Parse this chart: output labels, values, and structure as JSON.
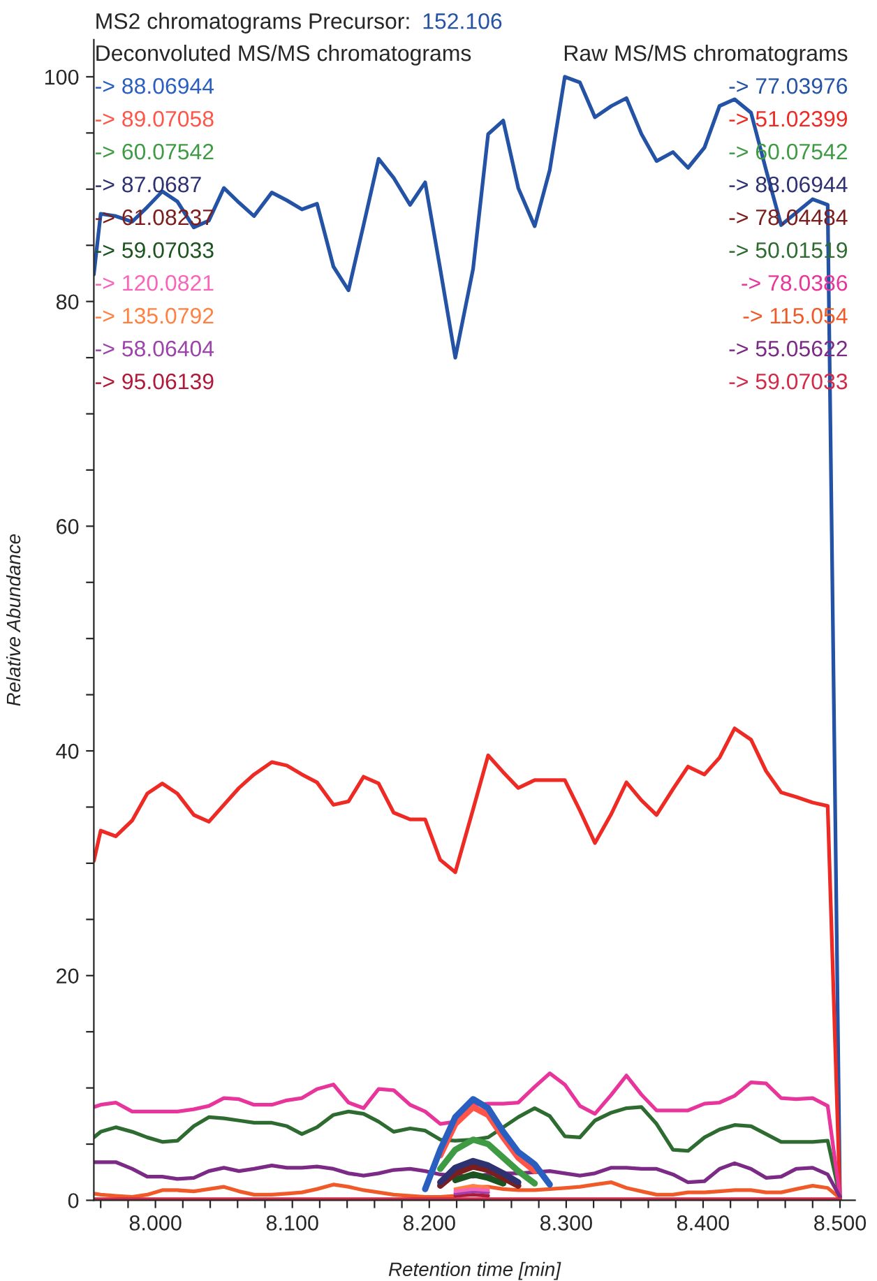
{
  "chart_data": {
    "type": "line",
    "title": "MS2 chromatograms Precursor:",
    "subtitle": "152.106",
    "xlabel": "Retention time [min]",
    "ylabel": "Relative Abundance",
    "annotations": [
      "Deconvoluted MS/MS chromatograms",
      "Raw MS/MS chromatograms"
    ],
    "legend": "top",
    "grid": false,
    "marker": "none",
    "line_style": "solid",
    "xlim": [
      7.955,
      8.511
    ],
    "ylim": [
      0,
      103.3
    ],
    "xticks": [
      {
        "value": 7.96,
        "label": null
      },
      {
        "value": 7.98,
        "label": null
      },
      {
        "value": 8.0,
        "label": "8.000"
      },
      {
        "value": 8.02,
        "label": null
      },
      {
        "value": 8.04,
        "label": null
      },
      {
        "value": 8.06,
        "label": null
      },
      {
        "value": 8.08,
        "label": null
      },
      {
        "value": 8.1,
        "label": "8.100"
      },
      {
        "value": 8.12,
        "label": null
      },
      {
        "value": 8.14,
        "label": null
      },
      {
        "value": 8.16,
        "label": null
      },
      {
        "value": 8.18,
        "label": null
      },
      {
        "value": 8.2,
        "label": "8.200"
      },
      {
        "value": 8.22,
        "label": null
      },
      {
        "value": 8.24,
        "label": null
      },
      {
        "value": 8.26,
        "label": null
      },
      {
        "value": 8.28,
        "label": null
      },
      {
        "value": 8.3,
        "label": "8.300"
      },
      {
        "value": 8.32,
        "label": null
      },
      {
        "value": 8.34,
        "label": null
      },
      {
        "value": 8.36,
        "label": null
      },
      {
        "value": 8.38,
        "label": null
      },
      {
        "value": 8.4,
        "label": "8.400"
      },
      {
        "value": 8.42,
        "label": null
      },
      {
        "value": 8.44,
        "label": null
      },
      {
        "value": 8.46,
        "label": null
      },
      {
        "value": 8.48,
        "label": null
      },
      {
        "value": 8.5,
        "label": "8.500"
      }
    ],
    "yticks": [
      0,
      {
        "value": 5,
        "label": null
      },
      {
        "value": 10,
        "label": null
      },
      {
        "value": 15,
        "label": null
      },
      20,
      {
        "value": 25,
        "label": null
      },
      {
        "value": 30,
        "label": null
      },
      {
        "value": 35,
        "label": null
      },
      40,
      {
        "value": 45,
        "label": null
      },
      {
        "value": 50,
        "label": null
      },
      {
        "value": 55,
        "label": null
      },
      60,
      {
        "value": 65,
        "label": null
      },
      {
        "value": 70,
        "label": null
      },
      {
        "value": 75,
        "label": null
      },
      80,
      {
        "value": 85,
        "label": null
      },
      {
        "value": 90,
        "label": null
      },
      {
        "value": 95,
        "label": null
      },
      100
    ],
    "x": [
      7.955,
      7.96,
      7.971,
      7.983,
      7.994,
      8.005,
      8.016,
      8.028,
      8.039,
      8.05,
      8.061,
      8.072,
      8.085,
      8.096,
      8.107,
      8.118,
      8.13,
      8.141,
      8.152,
      8.163,
      8.174,
      8.186,
      8.197,
      8.208,
      8.219,
      8.232,
      8.243,
      8.254,
      8.265,
      8.277,
      8.288,
      8.299,
      8.31,
      8.321,
      8.333,
      8.344,
      8.355,
      8.366,
      8.378,
      8.389,
      8.401,
      8.412,
      8.423,
      8.435,
      8.446,
      8.457,
      8.468,
      8.48,
      8.491,
      8.5
    ],
    "series": [
      {
        "name": "-> 88.06944",
        "color": "#2a5fc0",
        "values": [
          null,
          null,
          null,
          null,
          null,
          null,
          null,
          null,
          null,
          null,
          null,
          null,
          null,
          null,
          null,
          null,
          null,
          null,
          null,
          null,
          null,
          null,
          1.0,
          4.5,
          7.4,
          9.0,
          8.2,
          6.1,
          4.3,
          3.2,
          1.4,
          null,
          null,
          null,
          null,
          null,
          null,
          null,
          null,
          null,
          null,
          null,
          null,
          null,
          null,
          null,
          null,
          null,
          null,
          null
        ]
      },
      {
        "name": "-> 89.07058",
        "color": "#ff5548",
        "values": [
          null,
          null,
          null,
          null,
          null,
          null,
          null,
          null,
          null,
          null,
          null,
          null,
          null,
          null,
          null,
          null,
          null,
          null,
          null,
          null,
          null,
          null,
          null,
          4.0,
          6.8,
          8.3,
          7.6,
          5.6,
          3.8,
          2.6,
          null,
          null,
          null,
          null,
          null,
          null,
          null,
          null,
          null,
          null,
          null,
          null,
          null,
          null,
          null,
          null,
          null,
          null,
          null,
          null
        ]
      },
      {
        "name": "-> 60.07542",
        "color": "#3f9a44",
        "values": [
          null,
          null,
          null,
          null,
          null,
          null,
          null,
          null,
          null,
          null,
          null,
          null,
          null,
          null,
          null,
          null,
          null,
          null,
          null,
          null,
          null,
          null,
          null,
          2.8,
          4.5,
          5.4,
          5.0,
          3.8,
          2.6,
          1.5,
          null,
          null,
          null,
          null,
          null,
          null,
          null,
          null,
          null,
          null,
          null,
          null,
          null,
          null,
          null,
          null,
          null,
          null,
          null,
          null
        ]
      },
      {
        "name": "-> 87.0687",
        "color": "#2f3270",
        "values": [
          null,
          null,
          null,
          null,
          null,
          null,
          null,
          null,
          null,
          null,
          null,
          null,
          null,
          null,
          null,
          null,
          null,
          null,
          null,
          null,
          null,
          null,
          null,
          1.6,
          2.9,
          3.5,
          3.1,
          2.4,
          1.6,
          null,
          null,
          null,
          null,
          null,
          null,
          null,
          null,
          null,
          null,
          null,
          null,
          null,
          null,
          null,
          null,
          null,
          null,
          null,
          null,
          null
        ]
      },
      {
        "name": "-> 61.08237",
        "color": "#7b1e1e",
        "values": [
          null,
          null,
          null,
          null,
          null,
          null,
          null,
          null,
          null,
          null,
          null,
          null,
          null,
          null,
          null,
          null,
          null,
          null,
          null,
          null,
          null,
          null,
          null,
          1.3,
          2.4,
          3.0,
          2.7,
          2.0,
          1.3,
          null,
          null,
          null,
          null,
          null,
          null,
          null,
          null,
          null,
          null,
          null,
          null,
          null,
          null,
          null,
          null,
          null,
          null,
          null,
          null,
          null
        ]
      },
      {
        "name": "-> 59.07033",
        "color": "#1c5420",
        "values": [
          null,
          null,
          null,
          null,
          null,
          null,
          null,
          null,
          null,
          null,
          null,
          null,
          null,
          null,
          null,
          null,
          null,
          null,
          null,
          null,
          null,
          null,
          null,
          null,
          1.8,
          2.3,
          2.0,
          1.5,
          null,
          null,
          null,
          null,
          null,
          null,
          null,
          null,
          null,
          null,
          null,
          null,
          null,
          null,
          null,
          null,
          null,
          null,
          null,
          null,
          null,
          null
        ]
      },
      {
        "name": "-> 120.0821",
        "color": "#f765ba",
        "values": [
          null,
          null,
          null,
          null,
          null,
          null,
          null,
          null,
          null,
          null,
          null,
          null,
          null,
          null,
          null,
          null,
          null,
          null,
          null,
          null,
          null,
          null,
          null,
          null,
          0.8,
          1.0,
          0.9,
          null,
          null,
          null,
          null,
          null,
          null,
          null,
          null,
          null,
          null,
          null,
          null,
          null,
          null,
          null,
          null,
          null,
          null,
          null,
          null,
          null,
          null,
          null
        ]
      },
      {
        "name": "-> 135.0792",
        "color": "#ff8040",
        "values": [
          null,
          null,
          null,
          null,
          null,
          null,
          null,
          null,
          null,
          null,
          null,
          null,
          null,
          null,
          null,
          null,
          null,
          null,
          null,
          null,
          null,
          null,
          null,
          null,
          1.0,
          1.3,
          1.1,
          null,
          null,
          null,
          null,
          null,
          null,
          null,
          null,
          null,
          null,
          null,
          null,
          null,
          null,
          null,
          null,
          null,
          null,
          null,
          null,
          null,
          null,
          null
        ]
      },
      {
        "name": "-> 58.06404",
        "color": "#9c42ab",
        "values": [
          null,
          null,
          null,
          null,
          null,
          null,
          null,
          null,
          null,
          null,
          null,
          null,
          null,
          null,
          null,
          null,
          null,
          null,
          null,
          null,
          null,
          null,
          null,
          null,
          0.6,
          0.8,
          0.7,
          null,
          null,
          null,
          null,
          null,
          null,
          null,
          null,
          null,
          null,
          null,
          null,
          null,
          null,
          null,
          null,
          null,
          null,
          null,
          null,
          null,
          null,
          null
        ]
      },
      {
        "name": "-> 95.06139",
        "color": "#b01a3a",
        "values": [
          null,
          null,
          null,
          null,
          null,
          null,
          null,
          null,
          null,
          null,
          null,
          null,
          null,
          null,
          null,
          null,
          null,
          null,
          null,
          null,
          null,
          null,
          null,
          null,
          0.4,
          0.5,
          0.4,
          null,
          null,
          null,
          null,
          null,
          null,
          null,
          null,
          null,
          null,
          null,
          null,
          null,
          null,
          null,
          null,
          null,
          null,
          null,
          null,
          null,
          null,
          null
        ]
      },
      {
        "name": "-> 77.03976",
        "color": "#2453a6",
        "values": [
          82.4,
          87.8,
          87.6,
          87.1,
          88.4,
          89.8,
          88.9,
          86.6,
          87.2,
          90.1,
          88.8,
          87.6,
          89.7,
          89.0,
          88.2,
          88.7,
          83.1,
          81.0,
          86.8,
          92.7,
          91.0,
          88.6,
          90.6,
          82.9,
          75.0,
          82.9,
          94.9,
          96.1,
          90.1,
          86.7,
          91.7,
          100.0,
          99.5,
          96.4,
          97.4,
          98.1,
          94.9,
          92.5,
          93.3,
          91.9,
          93.7,
          97.4,
          98.0,
          96.8,
          91.7,
          86.8,
          87.9,
          89.1,
          88.6,
          0.0
        ]
      },
      {
        "name": "-> 51.02399",
        "color": "#ee2a24",
        "values": [
          30.2,
          32.9,
          32.4,
          33.8,
          36.2,
          37.1,
          36.2,
          34.3,
          33.7,
          35.2,
          36.7,
          37.9,
          39.0,
          38.7,
          37.9,
          37.2,
          35.2,
          35.5,
          37.7,
          37.1,
          34.5,
          33.9,
          33.9,
          30.3,
          29.2,
          34.8,
          39.6,
          38.1,
          36.7,
          37.4,
          37.4,
          37.4,
          34.7,
          31.8,
          34.4,
          37.2,
          35.6,
          34.3,
          36.6,
          38.6,
          37.9,
          39.4,
          42.0,
          41.0,
          38.2,
          36.3,
          35.9,
          35.4,
          35.1,
          0.0
        ]
      },
      {
        "name": "-> 60.07542",
        "color": "#3f9a44",
        "values": [
          null,
          null,
          null,
          null,
          null,
          null,
          null,
          null,
          null,
          null,
          null,
          null,
          null,
          null,
          null,
          null,
          null,
          null,
          null,
          null,
          null,
          null,
          null,
          null,
          null,
          null,
          null,
          null,
          null,
          null,
          null,
          null,
          null,
          null,
          null,
          null,
          null,
          null,
          null,
          null,
          null,
          null,
          null,
          null,
          null,
          null,
          null,
          null,
          null,
          null
        ]
      },
      {
        "name": "-> 88.06944",
        "color": "#2f3270",
        "values": [
          null,
          null,
          null,
          null,
          null,
          null,
          null,
          null,
          null,
          null,
          null,
          null,
          null,
          null,
          null,
          null,
          null,
          null,
          null,
          null,
          null,
          null,
          null,
          null,
          null,
          null,
          null,
          null,
          null,
          null,
          null,
          null,
          null,
          null,
          null,
          null,
          null,
          null,
          null,
          null,
          null,
          null,
          null,
          null,
          null,
          null,
          null,
          null,
          null,
          null
        ]
      },
      {
        "name": "-> 78.04484",
        "color": "#7b1e1e",
        "values": [
          null,
          null,
          null,
          null,
          null,
          null,
          null,
          null,
          null,
          null,
          null,
          null,
          null,
          null,
          null,
          null,
          null,
          null,
          null,
          null,
          null,
          null,
          null,
          null,
          null,
          null,
          null,
          null,
          null,
          null,
          null,
          null,
          null,
          null,
          null,
          null,
          null,
          null,
          null,
          null,
          null,
          null,
          null,
          null,
          null,
          null,
          null,
          null,
          null,
          null
        ]
      },
      {
        "name": "-> 50.01519",
        "color": "#2e6b30",
        "values": [
          5.6,
          6.1,
          6.5,
          6.1,
          5.6,
          5.2,
          5.3,
          6.6,
          7.4,
          7.3,
          7.1,
          6.9,
          6.9,
          6.6,
          5.9,
          6.5,
          7.6,
          7.9,
          7.7,
          7.0,
          6.1,
          6.4,
          6.2,
          5.4,
          5.3,
          5.4,
          5.6,
          6.5,
          7.4,
          8.2,
          7.5,
          5.7,
          5.6,
          7.1,
          7.8,
          8.2,
          8.3,
          6.8,
          4.5,
          4.4,
          5.6,
          6.3,
          6.7,
          6.6,
          5.9,
          5.2,
          5.2,
          5.2,
          5.3,
          0.3
        ]
      },
      {
        "name": "-> 78.0386",
        "color": "#e8359b",
        "values": [
          8.3,
          8.5,
          8.7,
          7.9,
          7.9,
          7.9,
          7.9,
          8.1,
          8.4,
          9.1,
          9.0,
          8.5,
          8.5,
          8.9,
          9.1,
          9.9,
          10.3,
          8.7,
          8.2,
          9.9,
          9.8,
          8.5,
          7.9,
          6.8,
          7.0,
          8.5,
          8.6,
          8.6,
          8.7,
          10.1,
          11.3,
          10.3,
          8.4,
          7.7,
          9.4,
          11.1,
          9.4,
          8.0,
          8.0,
          8.0,
          8.6,
          8.7,
          9.3,
          10.5,
          10.4,
          9.1,
          9.0,
          9.1,
          8.4,
          0.3
        ]
      },
      {
        "name": "-> 115.054",
        "color": "#f05a28",
        "values": [
          0.6,
          0.5,
          0.4,
          0.3,
          0.5,
          0.9,
          0.9,
          0.8,
          1.0,
          1.2,
          0.8,
          0.5,
          0.5,
          0.6,
          0.7,
          1.0,
          1.4,
          1.2,
          0.9,
          0.7,
          0.5,
          0.4,
          0.3,
          0.3,
          0.4,
          1.2,
          1.2,
          1.0,
          0.9,
          0.9,
          1.0,
          1.1,
          1.2,
          1.4,
          1.6,
          1.1,
          0.8,
          0.5,
          0.5,
          0.7,
          0.7,
          0.8,
          0.9,
          0.9,
          0.7,
          0.7,
          1.0,
          1.3,
          1.1,
          0.2
        ]
      },
      {
        "name": "-> 55.05622",
        "color": "#7b2a85",
        "values": [
          3.4,
          3.4,
          3.4,
          2.8,
          2.1,
          2.1,
          1.9,
          2.0,
          2.6,
          2.9,
          2.6,
          2.8,
          3.1,
          2.9,
          2.9,
          3.0,
          2.8,
          2.4,
          2.2,
          2.4,
          2.7,
          2.8,
          2.6,
          2.3,
          2.2,
          2.1,
          2.3,
          2.4,
          2.4,
          2.5,
          2.6,
          2.4,
          2.2,
          2.4,
          2.9,
          2.9,
          2.8,
          2.8,
          2.3,
          1.6,
          1.7,
          2.8,
          3.3,
          2.8,
          2.0,
          2.1,
          2.8,
          2.9,
          2.3,
          0.3
        ]
      },
      {
        "name": "-> 59.07033",
        "color": "#d42a4a",
        "values": [
          0.1,
          0.1,
          0.1,
          0.1,
          0.1,
          0.1,
          0.1,
          0.1,
          0.1,
          0.1,
          0.1,
          0.1,
          0.1,
          0.1,
          0.1,
          0.1,
          0.1,
          0.1,
          0.1,
          0.1,
          0.1,
          0.1,
          0.1,
          0.1,
          0.1,
          0.1,
          0.1,
          0.1,
          0.1,
          0.1,
          0.1,
          0.1,
          0.1,
          0.1,
          0.1,
          0.1,
          0.1,
          0.1,
          0.1,
          0.1,
          0.1,
          0.1,
          0.1,
          0.1,
          0.1,
          0.1,
          0.1,
          0.1,
          0.1,
          0.1
        ]
      }
    ]
  }
}
